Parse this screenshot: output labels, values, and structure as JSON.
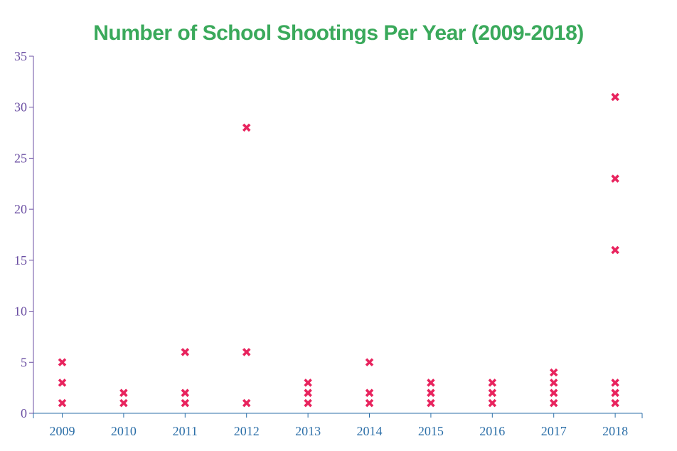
{
  "colors": {
    "title": "#3aa95b",
    "y_axis": "#6b4fa3",
    "x_axis": "#2c6fa8",
    "marker": "#e8245e"
  },
  "chart_data": {
    "type": "scatter",
    "title": "Number of School Shootings Per Year (2009-2018)",
    "xlabel": "",
    "ylabel": "",
    "marker": "x-icon",
    "ylim": [
      0,
      35
    ],
    "yticks": [
      0,
      5,
      10,
      15,
      20,
      25,
      30,
      35
    ],
    "categories": [
      "2009",
      "2010",
      "2011",
      "2012",
      "2013",
      "2014",
      "2015",
      "2016",
      "2017",
      "2018"
    ],
    "grid": false,
    "points": [
      {
        "x": "2009",
        "y": 5
      },
      {
        "x": "2009",
        "y": 3
      },
      {
        "x": "2009",
        "y": 1
      },
      {
        "x": "2010",
        "y": 2
      },
      {
        "x": "2010",
        "y": 1
      },
      {
        "x": "2011",
        "y": 6
      },
      {
        "x": "2011",
        "y": 2
      },
      {
        "x": "2011",
        "y": 1
      },
      {
        "x": "2012",
        "y": 28
      },
      {
        "x": "2012",
        "y": 6
      },
      {
        "x": "2012",
        "y": 1
      },
      {
        "x": "2013",
        "y": 3
      },
      {
        "x": "2013",
        "y": 2
      },
      {
        "x": "2013",
        "y": 1
      },
      {
        "x": "2014",
        "y": 5
      },
      {
        "x": "2014",
        "y": 2
      },
      {
        "x": "2014",
        "y": 1
      },
      {
        "x": "2015",
        "y": 3
      },
      {
        "x": "2015",
        "y": 2
      },
      {
        "x": "2015",
        "y": 1
      },
      {
        "x": "2016",
        "y": 3
      },
      {
        "x": "2016",
        "y": 2
      },
      {
        "x": "2016",
        "y": 1
      },
      {
        "x": "2017",
        "y": 4
      },
      {
        "x": "2017",
        "y": 3
      },
      {
        "x": "2017",
        "y": 2
      },
      {
        "x": "2017",
        "y": 1
      },
      {
        "x": "2018",
        "y": 31
      },
      {
        "x": "2018",
        "y": 23
      },
      {
        "x": "2018",
        "y": 16
      },
      {
        "x": "2018",
        "y": 3
      },
      {
        "x": "2018",
        "y": 2
      },
      {
        "x": "2018",
        "y": 1
      }
    ]
  }
}
